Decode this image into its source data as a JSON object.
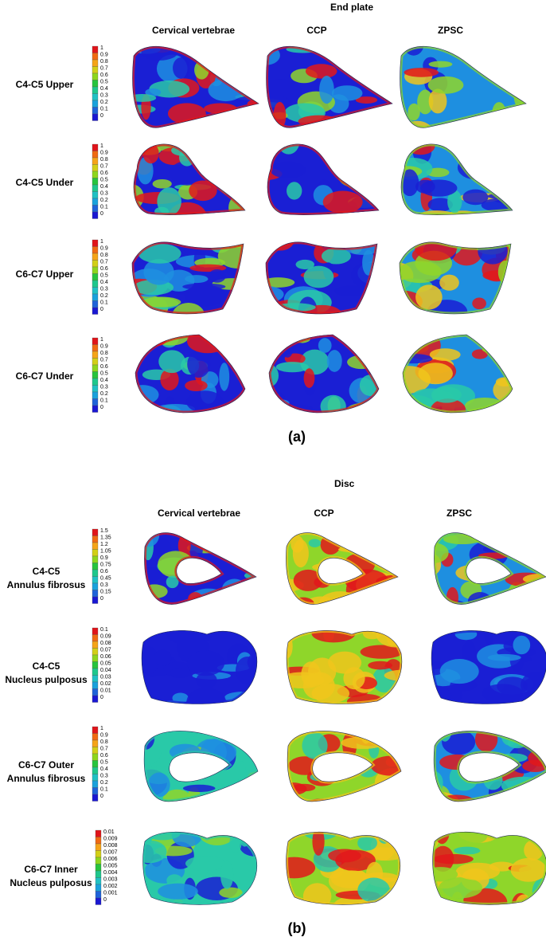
{
  "part_a": {
    "title": "End plate",
    "columns": [
      "Cervical vertebrae",
      "CCP",
      "ZPSC"
    ],
    "figure_label": "(a)",
    "rows": [
      {
        "label": "C4-C5 Upper",
        "scale": [
          "1",
          "0.9",
          "0.8",
          "0.7",
          "0.6",
          "0.5",
          "0.4",
          "0.3",
          "0.2",
          "0.1",
          "0"
        ]
      },
      {
        "label": "C4-C5 Under",
        "scale": [
          "1",
          "0.9",
          "0.8",
          "0.7",
          "0.6",
          "0.5",
          "0.4",
          "0.3",
          "0.2",
          "0.1",
          "0"
        ]
      },
      {
        "label": "C6-C7 Upper",
        "scale": [
          "1",
          "0.9",
          "0.8",
          "0.7",
          "0.6",
          "0.5",
          "0.4",
          "0.3",
          "0.2",
          "0.1",
          "0"
        ]
      },
      {
        "label": "C6-C7 Under",
        "scale": [
          "1",
          "0.9",
          "0.8",
          "0.7",
          "0.6",
          "0.5",
          "0.4",
          "0.3",
          "0.2",
          "0.1",
          "0"
        ]
      }
    ]
  },
  "part_b": {
    "title": "Disc",
    "columns": [
      "Cervical vertebrae",
      "CCP",
      "ZPSC"
    ],
    "figure_label": "(b)",
    "rows": [
      {
        "label_line1": "C4-C5",
        "label_line2": "Annulus fibrosus",
        "scale": [
          "1.5",
          "1.35",
          "1.2",
          "1.05",
          "0.9",
          "0.75",
          "0.6",
          "0.45",
          "0.3",
          "0.15",
          "0"
        ]
      },
      {
        "label_line1": "C4-C5",
        "label_line2": "Nucleus pulposus",
        "scale": [
          "0.1",
          "0.09",
          "0.08",
          "0.07",
          "0.06",
          "0.05",
          "0.04",
          "0.03",
          "0.02",
          "0.01",
          "0"
        ]
      },
      {
        "label_line1": "C6-C7 Outer",
        "label_line2": "Annulus fibrosus",
        "scale": [
          "1",
          "0.9",
          "0.8",
          "0.7",
          "0.6",
          "0.5",
          "0.4",
          "0.3",
          "0.2",
          "0.1",
          "0"
        ]
      },
      {
        "label_line1": "C6-C7 Inner",
        "label_line2": "Nucleus pulposus",
        "scale": [
          "0.01",
          "0.009",
          "0.008",
          "0.007",
          "0.006",
          "0.005",
          "0.004",
          "0.003",
          "0.002",
          "0.001",
          "0"
        ]
      }
    ]
  },
  "colorbar": [
    "#e0141a",
    "#f06a12",
    "#f5a418",
    "#d2cf16",
    "#8ed61c",
    "#27c43d",
    "#1fc78c",
    "#20c1c4",
    "#1aa2dc",
    "#1f63d9",
    "#1a17d2"
  ],
  "contour_colors": {
    "low": "#1a1fd4",
    "mid_low": "#1e8fe0",
    "mid": "#29c9a8",
    "mid_high": "#8fd62a",
    "high": "#f0c51c",
    "peak": "#e2171b"
  }
}
